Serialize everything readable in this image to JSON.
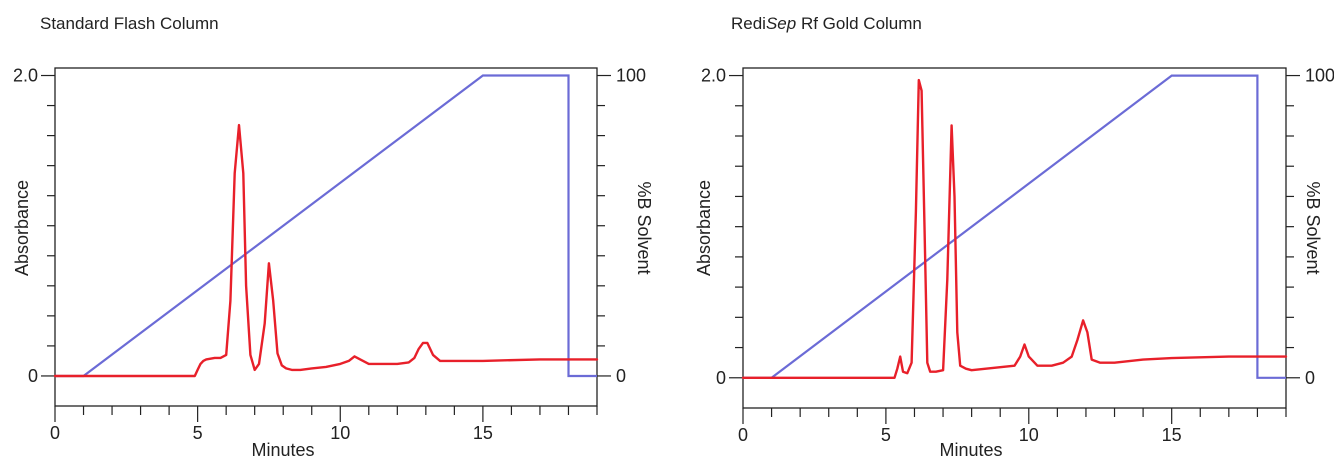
{
  "chart_data": [
    {
      "type": "line",
      "title": "Standard Flash Column",
      "title_parts": {
        "pre": "Standard Flash Column",
        "ital": "",
        "post": ""
      },
      "xlabel": "Minutes",
      "ylabel": "Absorbance",
      "y2label": "%B Solvent",
      "xlim": [
        0,
        19
      ],
      "ylim": [
        -0.2,
        2.05
      ],
      "y2lim": [
        -10,
        102.5
      ],
      "x_ticks": [
        0,
        5,
        10,
        15
      ],
      "y_ticks": [
        0,
        2.0
      ],
      "y_tick_labels": [
        "0",
        "2.0"
      ],
      "y2_ticks": [
        0,
        100
      ],
      "y2_tick_labels": [
        "0",
        "100"
      ],
      "colors": {
        "absorbance": "#e8202a",
        "solvent": "#6b6bd6",
        "axis": "#222222"
      },
      "series": [
        {
          "axis": "y2",
          "x": [
            0,
            1.0,
            15.0,
            18.0,
            18.0,
            19.0
          ],
          "y": [
            0,
            0,
            100,
            100,
            0,
            0
          ]
        },
        {
          "axis": "y",
          "x": [
            0,
            4.9,
            5.0,
            5.1,
            5.2,
            5.3,
            5.6,
            5.8,
            6.0,
            6.15,
            6.3,
            6.45,
            6.6,
            6.7,
            6.85,
            7.0,
            7.15,
            7.35,
            7.5,
            7.65,
            7.8,
            7.95,
            8.1,
            8.3,
            8.6,
            9.0,
            9.5,
            10.0,
            10.3,
            10.5,
            10.7,
            11.0,
            11.5,
            12.0,
            12.4,
            12.6,
            12.75,
            12.9,
            13.05,
            13.25,
            13.5,
            13.8,
            15.0,
            17.0,
            18.5,
            19.0
          ],
          "y": [
            0,
            0,
            0.04,
            0.08,
            0.1,
            0.11,
            0.12,
            0.12,
            0.14,
            0.5,
            1.35,
            1.67,
            1.35,
            0.6,
            0.14,
            0.04,
            0.08,
            0.35,
            0.75,
            0.5,
            0.15,
            0.07,
            0.05,
            0.04,
            0.04,
            0.05,
            0.06,
            0.08,
            0.1,
            0.13,
            0.11,
            0.08,
            0.08,
            0.08,
            0.09,
            0.12,
            0.18,
            0.22,
            0.22,
            0.14,
            0.1,
            0.1,
            0.1,
            0.11,
            0.11,
            0.11
          ]
        }
      ]
    },
    {
      "type": "line",
      "title": "RediSep Rf Gold Column",
      "title_parts": {
        "pre": "Redi",
        "ital": "Sep",
        "post": " Rf Gold Column"
      },
      "xlabel": "Minutes",
      "ylabel": "Absorbance",
      "y2label": "%B Solvent",
      "xlim": [
        0,
        19
      ],
      "ylim": [
        -0.2,
        2.05
      ],
      "y2lim": [
        -10,
        102.5
      ],
      "x_ticks": [
        0,
        5,
        10,
        15
      ],
      "y_ticks": [
        0,
        2.0
      ],
      "y_tick_labels": [
        "0",
        "2.0"
      ],
      "y2_ticks": [
        0,
        100
      ],
      "y2_tick_labels": [
        "0",
        "100"
      ],
      "colors": {
        "absorbance": "#e8202a",
        "solvent": "#6b6bd6",
        "axis": "#222222"
      },
      "series": [
        {
          "axis": "y2",
          "x": [
            0,
            1.0,
            15.0,
            18.0,
            18.0,
            19.0
          ],
          "y": [
            0,
            0,
            100,
            100,
            0,
            0
          ]
        },
        {
          "axis": "y",
          "x": [
            0,
            5.3,
            5.4,
            5.5,
            5.6,
            5.75,
            5.9,
            6.05,
            6.15,
            6.25,
            6.35,
            6.45,
            6.55,
            6.75,
            7.0,
            7.15,
            7.3,
            7.4,
            7.5,
            7.6,
            7.8,
            8.0,
            8.5,
            9.0,
            9.5,
            9.7,
            9.85,
            10.0,
            10.3,
            10.8,
            11.2,
            11.5,
            11.7,
            11.9,
            12.05,
            12.2,
            12.5,
            13.0,
            14.0,
            15.0,
            17.0,
            19.0
          ],
          "y": [
            0,
            0,
            0.06,
            0.14,
            0.04,
            0.03,
            0.1,
            1.1,
            1.97,
            1.9,
            1.0,
            0.1,
            0.04,
            0.04,
            0.05,
            0.65,
            1.67,
            1.2,
            0.3,
            0.08,
            0.06,
            0.05,
            0.06,
            0.07,
            0.08,
            0.14,
            0.22,
            0.14,
            0.08,
            0.08,
            0.1,
            0.14,
            0.25,
            0.38,
            0.3,
            0.12,
            0.1,
            0.1,
            0.12,
            0.13,
            0.14,
            0.14
          ]
        }
      ]
    }
  ]
}
